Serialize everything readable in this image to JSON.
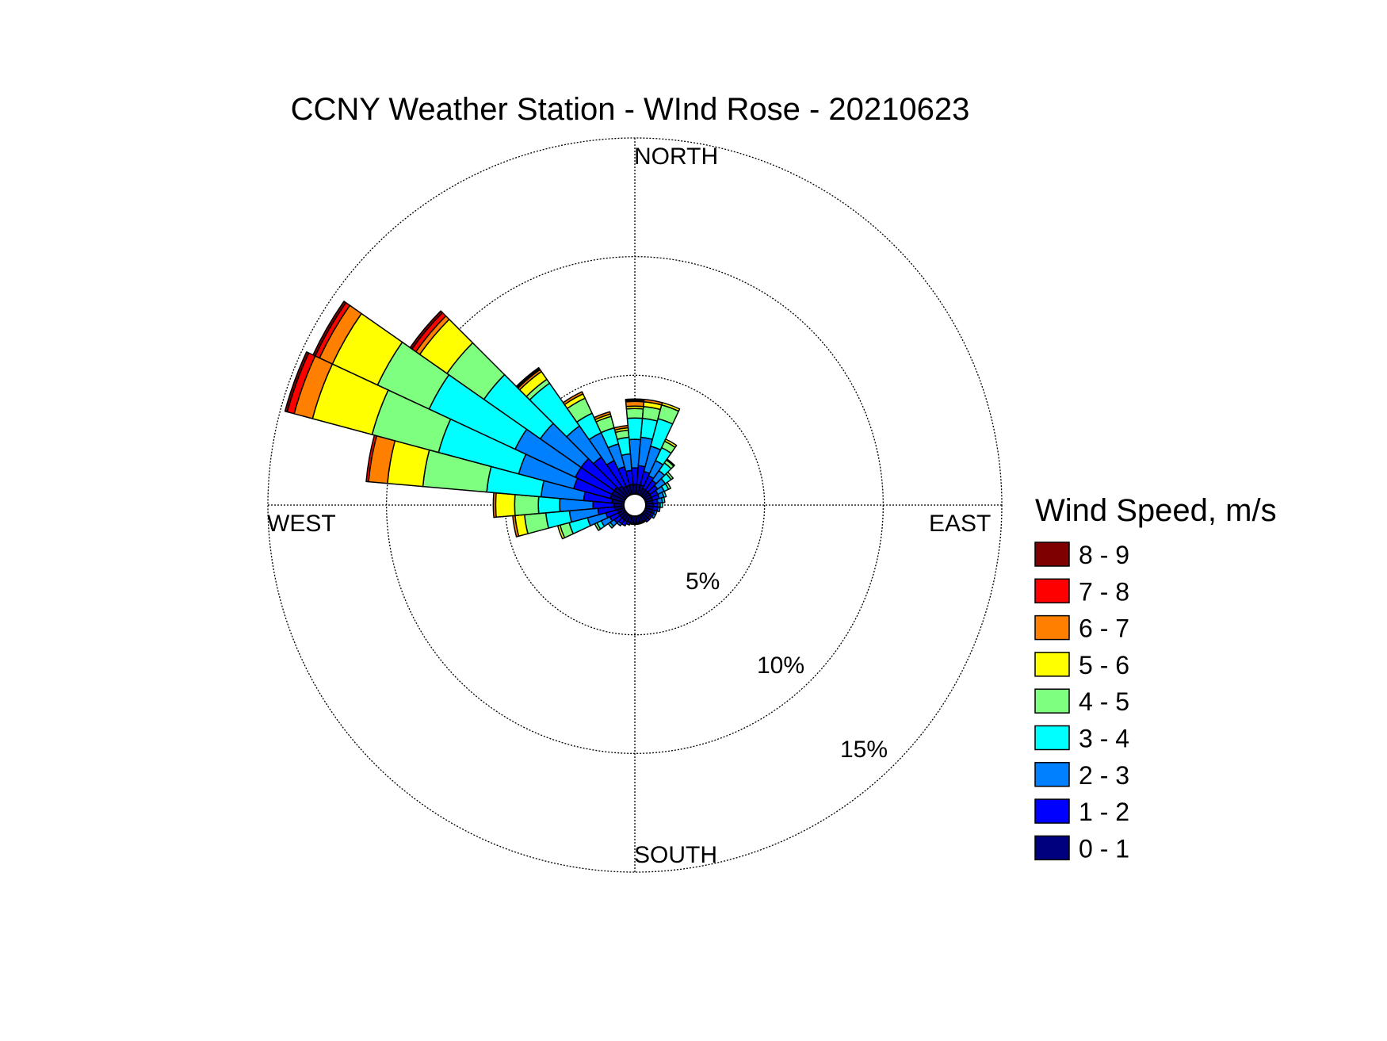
{
  "chart_data": {
    "type": "windrose",
    "title": "CCNY Weather Station - WInd Rose - 20210623",
    "directions": {
      "north": "NORTH",
      "east": "EAST",
      "south": "SOUTH",
      "west": "WEST"
    },
    "radial_axis": {
      "unit": "%",
      "max": 15,
      "rings": [
        5,
        10,
        15
      ],
      "ring_labels": [
        "5%",
        "10%",
        "15%"
      ]
    },
    "legend_title": "Wind Speed, m/s",
    "speed_bins": [
      {
        "label": "0 - 1",
        "color": "#00007f"
      },
      {
        "label": "1 - 2",
        "color": "#0000ff"
      },
      {
        "label": "2 - 3",
        "color": "#007fff"
      },
      {
        "label": "3 - 4",
        "color": "#00ffff"
      },
      {
        "label": "4 - 5",
        "color": "#7fff7f"
      },
      {
        "label": "5 - 6",
        "color": "#ffff00"
      },
      {
        "label": "6 - 7",
        "color": "#ff7f00"
      },
      {
        "label": "7 - 8",
        "color": "#ff0000"
      },
      {
        "label": "8 - 9",
        "color": "#7f0000"
      }
    ],
    "sector_width_deg": 10,
    "sectors": [
      {
        "direction_deg": 0,
        "cumulative_pct": [
          0.4,
          1.1,
          2.3,
          3.2,
          3.6,
          3.7,
          3.9,
          3.95,
          4.0
        ]
      },
      {
        "direction_deg": 10,
        "cumulative_pct": [
          0.4,
          1.2,
          2.4,
          3.2,
          3.7,
          3.9,
          4.0,
          4.0,
          4.0
        ]
      },
      {
        "direction_deg": 20,
        "cumulative_pct": [
          0.4,
          1.0,
          2.1,
          3.3,
          3.9,
          4.0,
          4.0,
          4.0,
          4.0
        ]
      },
      {
        "direction_deg": 30,
        "cumulative_pct": [
          0.3,
          0.9,
          1.6,
          2.2,
          2.5,
          2.6,
          2.6,
          2.6,
          2.6
        ]
      },
      {
        "direction_deg": 40,
        "cumulative_pct": [
          0.3,
          0.8,
          1.3,
          1.7,
          1.85,
          1.9,
          1.9,
          1.9,
          1.9
        ]
      },
      {
        "direction_deg": 50,
        "cumulative_pct": [
          0.3,
          0.7,
          1.1,
          1.4,
          1.5,
          1.5,
          1.5,
          1.5,
          1.5
        ]
      },
      {
        "direction_deg": 60,
        "cumulative_pct": [
          0.3,
          0.6,
          0.9,
          1.1,
          1.2,
          1.2,
          1.2,
          1.2,
          1.2
        ]
      },
      {
        "direction_deg": 70,
        "cumulative_pct": [
          0.3,
          0.6,
          0.8,
          0.9,
          0.9,
          0.9,
          0.9,
          0.9,
          0.9
        ]
      },
      {
        "direction_deg": 80,
        "cumulative_pct": [
          0.3,
          0.5,
          0.7,
          0.8,
          0.8,
          0.8,
          0.8,
          0.8,
          0.8
        ]
      },
      {
        "direction_deg": 90,
        "cumulative_pct": [
          0.3,
          0.5,
          0.6,
          0.7,
          0.7,
          0.7,
          0.7,
          0.7,
          0.7
        ]
      },
      {
        "direction_deg": 100,
        "cumulative_pct": [
          0.3,
          0.5,
          0.6,
          0.6,
          0.6,
          0.6,
          0.6,
          0.6,
          0.6
        ]
      },
      {
        "direction_deg": 110,
        "cumulative_pct": [
          0.3,
          0.4,
          0.5,
          0.5,
          0.5,
          0.5,
          0.5,
          0.5,
          0.5
        ]
      },
      {
        "direction_deg": 120,
        "cumulative_pct": [
          0.3,
          0.4,
          0.5,
          0.5,
          0.5,
          0.5,
          0.5,
          0.5,
          0.5
        ]
      },
      {
        "direction_deg": 130,
        "cumulative_pct": [
          0.3,
          0.4,
          0.4,
          0.4,
          0.4,
          0.4,
          0.4,
          0.4,
          0.4
        ]
      },
      {
        "direction_deg": 140,
        "cumulative_pct": [
          0.3,
          0.4,
          0.4,
          0.4,
          0.4,
          0.4,
          0.4,
          0.4,
          0.4
        ]
      },
      {
        "direction_deg": 150,
        "cumulative_pct": [
          0.3,
          0.35,
          0.35,
          0.35,
          0.35,
          0.35,
          0.35,
          0.35,
          0.35
        ]
      },
      {
        "direction_deg": 160,
        "cumulative_pct": [
          0.3,
          0.35,
          0.35,
          0.35,
          0.35,
          0.35,
          0.35,
          0.35,
          0.35
        ]
      },
      {
        "direction_deg": 170,
        "cumulative_pct": [
          0.3,
          0.35,
          0.35,
          0.35,
          0.35,
          0.35,
          0.35,
          0.35,
          0.35
        ]
      },
      {
        "direction_deg": 180,
        "cumulative_pct": [
          0.3,
          0.35,
          0.35,
          0.35,
          0.35,
          0.35,
          0.35,
          0.35,
          0.35
        ]
      },
      {
        "direction_deg": 190,
        "cumulative_pct": [
          0.3,
          0.35,
          0.35,
          0.35,
          0.35,
          0.35,
          0.35,
          0.35,
          0.35
        ]
      },
      {
        "direction_deg": 200,
        "cumulative_pct": [
          0.3,
          0.4,
          0.4,
          0.4,
          0.4,
          0.4,
          0.4,
          0.4,
          0.4
        ]
      },
      {
        "direction_deg": 210,
        "cumulative_pct": [
          0.3,
          0.5,
          0.5,
          0.5,
          0.5,
          0.5,
          0.5,
          0.5,
          0.5
        ]
      },
      {
        "direction_deg": 220,
        "cumulative_pct": [
          0.3,
          0.5,
          0.6,
          0.6,
          0.6,
          0.6,
          0.6,
          0.6,
          0.6
        ]
      },
      {
        "direction_deg": 230,
        "cumulative_pct": [
          0.3,
          0.6,
          0.8,
          0.9,
          0.9,
          0.9,
          0.9,
          0.9,
          0.9
        ]
      },
      {
        "direction_deg": 240,
        "cumulative_pct": [
          0.3,
          0.7,
          1.1,
          1.3,
          1.4,
          1.4,
          1.4,
          1.4,
          1.4
        ]
      },
      {
        "direction_deg": 250,
        "cumulative_pct": [
          0.3,
          0.8,
          1.6,
          2.4,
          2.8,
          2.9,
          2.9,
          2.9,
          2.9
        ]
      },
      {
        "direction_deg": 260,
        "cumulative_pct": [
          0.4,
          1.1,
          2.3,
          3.3,
          4.2,
          4.6,
          4.7,
          4.7,
          4.7
        ]
      },
      {
        "direction_deg": 270,
        "cumulative_pct": [
          0.4,
          1.3,
          2.7,
          3.6,
          4.6,
          5.4,
          5.5,
          5.5,
          5.5
        ]
      },
      {
        "direction_deg": 280,
        "cumulative_pct": [
          0.5,
          1.7,
          3.5,
          5.8,
          8.5,
          10.0,
          10.8,
          10.9,
          10.9
        ]
      },
      {
        "direction_deg": 290,
        "cumulative_pct": [
          0.6,
          2.2,
          4.6,
          8.1,
          11.0,
          13.6,
          14.4,
          14.7,
          14.8
        ]
      },
      {
        "direction_deg": 300,
        "cumulative_pct": [
          0.6,
          2.3,
          5.1,
          9.1,
          11.5,
          13.6,
          14.2,
          14.4,
          14.5
        ]
      },
      {
        "direction_deg": 310,
        "cumulative_pct": [
          0.6,
          2.3,
          4.4,
          7.3,
          9.2,
          10.6,
          10.8,
          11.0,
          11.1
        ]
      },
      {
        "direction_deg": 320,
        "cumulative_pct": [
          0.5,
          2.0,
          3.6,
          5.8,
          6.0,
          6.4,
          6.5,
          6.55,
          6.6
        ]
      },
      {
        "direction_deg": 330,
        "cumulative_pct": [
          0.4,
          1.6,
          2.9,
          3.8,
          4.5,
          4.7,
          4.8,
          4.8,
          4.8
        ]
      },
      {
        "direction_deg": 340,
        "cumulative_pct": [
          0.4,
          1.2,
          2.2,
          2.9,
          3.4,
          3.5,
          3.6,
          3.6,
          3.6
        ]
      },
      {
        "direction_deg": 350,
        "cumulative_pct": [
          0.4,
          1.0,
          1.7,
          2.4,
          2.7,
          2.8,
          2.9,
          2.9,
          2.9
        ]
      }
    ]
  }
}
